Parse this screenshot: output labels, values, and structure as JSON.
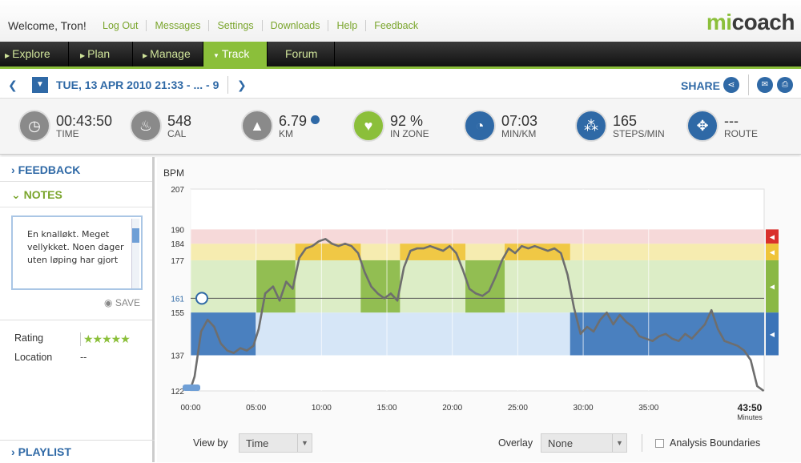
{
  "header": {
    "welcome": "Welcome, Tron!",
    "links": [
      "Log Out",
      "Messages",
      "Settings",
      "Downloads",
      "Help",
      "Feedback"
    ],
    "logo_mi": "mi",
    "logo_coach": "coach"
  },
  "nav": {
    "items": [
      {
        "label": "Explore"
      },
      {
        "label": "Plan"
      },
      {
        "label": "Manage"
      },
      {
        "label": "Track"
      },
      {
        "label": "Forum"
      }
    ],
    "selected": "Track"
  },
  "datebar": {
    "date": "TUE, 13 APR 2010 21:33 - ... - 9",
    "share": "SHARE"
  },
  "stats": [
    {
      "value": "00:43:50",
      "label": "TIME",
      "icon": "stopwatch-icon",
      "color": "grey"
    },
    {
      "value": "548",
      "label": "CAL",
      "icon": "flame-icon",
      "color": "grey"
    },
    {
      "value": "6.79",
      "label": "KM",
      "icon": "road-icon",
      "color": "grey"
    },
    {
      "value": "92 %",
      "label": "IN ZONE",
      "icon": "heart-icon",
      "color": "green"
    },
    {
      "value": "07:03",
      "label": "MIN/KM",
      "icon": "speedometer-icon",
      "color": "blue"
    },
    {
      "value": "165",
      "label": "STEPS/MIN",
      "icon": "footsteps-icon",
      "color": "blue"
    },
    {
      "value": "---",
      "label": "ROUTE",
      "icon": "compass-icon",
      "color": "blue"
    }
  ],
  "sidebar": {
    "feedback": "FEEDBACK",
    "notes": "NOTES",
    "note_text": "En knalløkt. Meget vellykket. Noen dager uten løping har gjort",
    "save": "SAVE",
    "rating_label": "Rating",
    "rating_stars": "★★★★★",
    "location_label": "Location",
    "location_value": "--",
    "playlist": "PLAYLIST"
  },
  "controls": {
    "view_by_label": "View by",
    "view_by_value": "Time",
    "overlay_label": "Overlay",
    "overlay_value": "None",
    "analysis_label": "Analysis Boundaries"
  },
  "chart_data": {
    "type": "line",
    "ylabel": "BPM",
    "xlabel": "Minutes",
    "x_end_label": "43:50",
    "y_ticks": [
      122,
      137,
      155,
      161,
      177,
      184,
      190,
      207
    ],
    "x_ticks": [
      "00:00",
      "05:00",
      "10:00",
      "15:00",
      "20:00",
      "25:00",
      "30:00",
      "35:00"
    ],
    "ylim": [
      122,
      207
    ],
    "xlim": [
      0,
      43.83
    ],
    "zones": [
      {
        "from": 137,
        "to": 155,
        "color": "#d6e6f7"
      },
      {
        "from": 155,
        "to": 177,
        "color": "#dcedc6"
      },
      {
        "from": 177,
        "to": 184,
        "color": "#f6ecb0"
      },
      {
        "from": 184,
        "to": 190,
        "color": "#f6d9d9"
      }
    ],
    "reference_line": 161,
    "highlight_segments": [
      {
        "start": 0,
        "end": 5,
        "zone": "blue"
      },
      {
        "start": 5,
        "end": 8,
        "zone": "green"
      },
      {
        "start": 8,
        "end": 13,
        "zone": "yellow"
      },
      {
        "start": 13,
        "end": 16,
        "zone": "green"
      },
      {
        "start": 16,
        "end": 21,
        "zone": "yellow"
      },
      {
        "start": 21,
        "end": 24,
        "zone": "green"
      },
      {
        "start": 24,
        "end": 29,
        "zone": "yellow"
      },
      {
        "start": 29,
        "end": 43.83,
        "zone": "blue"
      }
    ],
    "series": [
      {
        "x": [
          0,
          0.3,
          0.8,
          1.3,
          1.8,
          2.3,
          2.8,
          3.3,
          3.8,
          4.3,
          4.8,
          5.2,
          5.7,
          6.3,
          6.8,
          7.3,
          7.8,
          8.3,
          8.8,
          9.3,
          9.8,
          10.3,
          10.8,
          11.3,
          11.8,
          12.3,
          12.8,
          13.3,
          13.8,
          14.3,
          14.8,
          15.3,
          15.8,
          16.3,
          16.8,
          17.3,
          17.8,
          18.3,
          18.8,
          19.3,
          19.8,
          20.3,
          20.8,
          21.3,
          21.8,
          22.3,
          22.8,
          23.3,
          23.8,
          24.3,
          24.8,
          25.3,
          25.8,
          26.3,
          26.8,
          27.3,
          27.8,
          28.3,
          28.8,
          29.3,
          29.8,
          30.3,
          30.8,
          31.3,
          31.8,
          32.3,
          32.8,
          33.3,
          33.8,
          34.3,
          34.8,
          35.3,
          35.8,
          36.3,
          36.8,
          37.3,
          37.8,
          38.3,
          38.8,
          39.3,
          39.8,
          40.3,
          40.8,
          41.3,
          41.8,
          42.3,
          42.8,
          43.3,
          43.8
        ],
        "values": [
          123,
          128,
          147,
          152,
          149,
          142,
          139,
          138,
          140,
          139,
          141,
          148,
          163,
          166,
          160,
          168,
          165,
          178,
          182,
          183,
          185,
          186,
          184,
          183,
          184,
          183,
          180,
          172,
          166,
          163,
          161,
          163,
          160,
          174,
          181,
          182,
          182,
          183,
          182,
          181,
          183,
          180,
          173,
          165,
          163,
          162,
          164,
          170,
          177,
          182,
          180,
          183,
          182,
          183,
          182,
          181,
          182,
          180,
          171,
          157,
          146,
          149,
          147,
          152,
          155,
          150,
          154,
          151,
          149,
          145,
          144,
          143,
          145,
          146,
          144,
          143,
          146,
          144,
          147,
          150,
          156,
          148,
          143,
          142,
          141,
          139,
          135,
          124,
          122
        ]
      }
    ]
  }
}
